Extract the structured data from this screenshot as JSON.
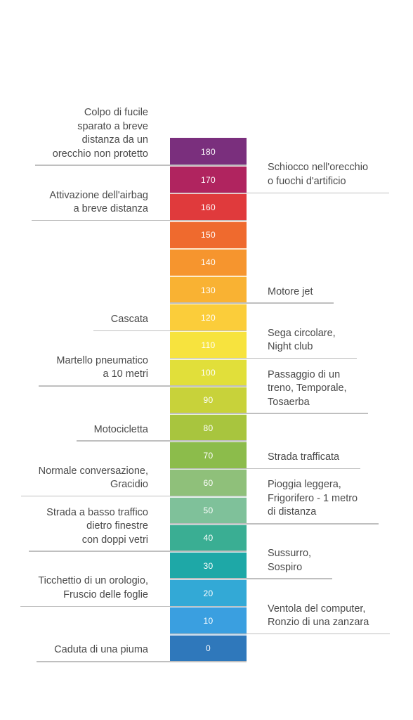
{
  "scale": {
    "unit": "",
    "min": 0,
    "max": 180,
    "step": 10,
    "levels": [
      {
        "value": 180,
        "label": "180",
        "color": "#7a2f7d"
      },
      {
        "value": 170,
        "label": "170",
        "color": "#b0245f"
      },
      {
        "value": 160,
        "label": "160",
        "color": "#e03a3c"
      },
      {
        "value": 150,
        "label": "150",
        "color": "#ef6a2e"
      },
      {
        "value": 140,
        "label": "140",
        "color": "#f6952e"
      },
      {
        "value": 130,
        "label": "130",
        "color": "#f9b233"
      },
      {
        "value": 120,
        "label": "120",
        "color": "#fbcd3a"
      },
      {
        "value": 110,
        "label": "110",
        "color": "#f7e33e"
      },
      {
        "value": 100,
        "label": "100",
        "color": "#e1df3a"
      },
      {
        "value": 90,
        "label": "90",
        "color": "#c8d23a"
      },
      {
        "value": 80,
        "label": "80",
        "color": "#a8c53e"
      },
      {
        "value": 70,
        "label": "70",
        "color": "#8cbc4b"
      },
      {
        "value": 60,
        "label": "60",
        "color": "#8fc07a"
      },
      {
        "value": 50,
        "label": "50",
        "color": "#7fc19a"
      },
      {
        "value": 40,
        "label": "40",
        "color": "#3aae93"
      },
      {
        "value": 30,
        "label": "30",
        "color": "#1ea8a7"
      },
      {
        "value": 20,
        "label": "20",
        "color": "#33a9d6"
      },
      {
        "value": 10,
        "label": "10",
        "color": "#3a9fe0"
      },
      {
        "value": 0,
        "label": "0",
        "color": "#2f78bb"
      }
    ]
  },
  "left_annotations": [
    {
      "value": 175,
      "lines": [
        "Colpo di fucile",
        "sparato a breve",
        "distanza da un",
        "orecchio non protetto"
      ]
    },
    {
      "value": 155,
      "lines": [
        "Attivazione dell'airbag",
        "a breve distanza"
      ]
    },
    {
      "value": 115,
      "lines": [
        "Cascata"
      ]
    },
    {
      "value": 95,
      "lines": [
        "Martello pneumatico",
        "a 10 metri"
      ]
    },
    {
      "value": 75,
      "lines": [
        "Motocicletta"
      ]
    },
    {
      "value": 55,
      "lines": [
        "Normale conversazione,",
        "Gracidio"
      ]
    },
    {
      "value": 35,
      "lines": [
        "Strada a basso traffico",
        "dietro finestre",
        "con doppi vetri"
      ]
    },
    {
      "value": 15,
      "lines": [
        "Ticchettio di un orologio,",
        "Fruscio delle foglie"
      ]
    },
    {
      "value": -5,
      "lines": [
        "Caduta di una piuma"
      ]
    }
  ],
  "right_annotations": [
    {
      "value": 165,
      "lines": [
        "Schiocco nell'orecchio",
        "o fuochi d'artificio"
      ]
    },
    {
      "value": 125,
      "lines": [
        "Motore jet"
      ]
    },
    {
      "value": 105,
      "lines": [
        "Sega circolare,",
        "Night club"
      ]
    },
    {
      "value": 85,
      "lines": [
        "Passaggio di un",
        "treno, Temporale,",
        "Tosaerba"
      ]
    },
    {
      "value": 65,
      "lines": [
        "Strada trafficata"
      ]
    },
    {
      "value": 45,
      "lines": [
        "Pioggia leggera,",
        "Frigorifero - 1 metro",
        "di distanza"
      ]
    },
    {
      "value": 25,
      "lines": [
        "Sussurro,",
        "Sospiro"
      ]
    },
    {
      "value": 5,
      "lines": [
        "Ventola del computer,",
        "Ronzio di una zanzara"
      ]
    }
  ],
  "colors": {
    "text": "#4a4a4a",
    "rule": "#bfbfbf",
    "level_text": "#ffffff"
  }
}
